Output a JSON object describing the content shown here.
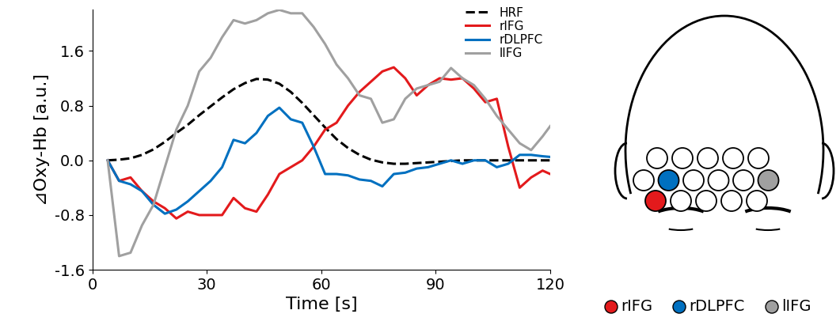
{
  "chart_data": {
    "type": "line",
    "x_label": "Time [s]",
    "y_label": "⊿Oxy-Hb [a.u.]",
    "x": [
      4,
      7,
      10,
      13,
      16,
      19,
      22,
      25,
      28,
      31,
      34,
      37,
      40,
      43,
      46,
      49,
      52,
      55,
      58,
      61,
      64,
      67,
      70,
      73,
      76,
      79,
      82,
      85,
      88,
      91,
      94,
      97,
      100,
      103,
      106,
      109,
      112,
      115,
      118,
      120
    ],
    "series": [
      {
        "name": "HRF",
        "color": "#000000",
        "line_style": "dashed",
        "values": [
          0,
          0.01,
          0.03,
          0.08,
          0.16,
          0.27,
          0.4,
          0.52,
          0.66,
          0.79,
          0.92,
          1.04,
          1.13,
          1.19,
          1.18,
          1.12,
          1.0,
          0.84,
          0.66,
          0.48,
          0.31,
          0.18,
          0.08,
          0.01,
          -0.03,
          -0.05,
          -0.05,
          -0.04,
          -0.03,
          -0.02,
          -0.01,
          0,
          0,
          0,
          0,
          0,
          0,
          0,
          0,
          0
        ]
      },
      {
        "name": "rIFG",
        "color": "#e31a1c",
        "line_style": "solid",
        "values": [
          0,
          -0.3,
          -0.25,
          -0.45,
          -0.6,
          -0.7,
          -0.85,
          -0.75,
          -0.8,
          -0.8,
          -0.8,
          -0.55,
          -0.7,
          -0.75,
          -0.5,
          -0.2,
          -0.1,
          0.0,
          0.2,
          0.45,
          0.55,
          0.8,
          1.0,
          1.15,
          1.3,
          1.36,
          1.2,
          0.95,
          1.1,
          1.2,
          1.18,
          1.2,
          1.05,
          0.85,
          0.9,
          0.2,
          -0.4,
          -0.25,
          -0.15,
          -0.2
        ]
      },
      {
        "name": "rDLPFC",
        "color": "#0070c0",
        "line_style": "solid",
        "values": [
          0,
          -0.3,
          -0.35,
          -0.45,
          -0.65,
          -0.78,
          -0.72,
          -0.6,
          -0.45,
          -0.3,
          -0.1,
          0.3,
          0.25,
          0.4,
          0.65,
          0.77,
          0.6,
          0.55,
          0.2,
          -0.2,
          -0.2,
          -0.22,
          -0.28,
          -0.3,
          -0.38,
          -0.2,
          -0.18,
          -0.12,
          -0.1,
          -0.05,
          0.0,
          -0.05,
          0.0,
          0.0,
          -0.1,
          -0.05,
          0.08,
          0.08,
          0.06,
          0.05
        ]
      },
      {
        "name": "lIFG",
        "color": "#a0a0a0",
        "line_style": "solid",
        "values": [
          0,
          -1.4,
          -1.35,
          -0.95,
          -0.65,
          -0.1,
          0.45,
          0.8,
          1.3,
          1.5,
          1.8,
          2.05,
          2.0,
          2.05,
          2.15,
          2.2,
          2.15,
          2.15,
          1.95,
          1.7,
          1.4,
          1.2,
          0.95,
          0.9,
          0.55,
          0.6,
          0.9,
          1.05,
          1.1,
          1.15,
          1.35,
          1.2,
          1.1,
          0.9,
          0.65,
          0.45,
          0.25,
          0.15,
          0.35,
          0.5
        ]
      }
    ],
    "xlim": [
      0,
      120
    ],
    "xticks": [
      0,
      30,
      60,
      90,
      120
    ],
    "ylim": [
      -1.6,
      2.2
    ],
    "yticks": [
      -1.6,
      -0.8,
      0.0,
      0.8,
      1.6
    ],
    "legend": "upper right",
    "grid": false
  }
}
